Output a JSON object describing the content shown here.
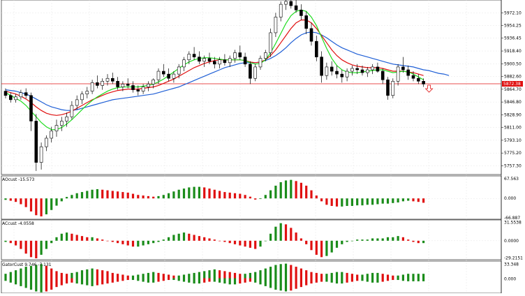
{
  "colors": {
    "bull": "#000000",
    "bear": "#000000",
    "green_hist": "#1a8c1a",
    "red_hist": "#e01010",
    "ma_blue": "#1f5fd6",
    "ma_red": "#e01010",
    "ma_green": "#22dd22",
    "price_line": "#e01010",
    "grid": "#e6e6e6",
    "arrow": "#e01010"
  },
  "main": {
    "y_ticks": [
      "5972.10",
      "5954.25",
      "5936.45",
      "5918.40",
      "5900.50",
      "5882.60",
      "5864.70",
      "5846.80",
      "5828.90",
      "5811.00",
      "5793.10",
      "5775.20",
      "5757.30"
    ],
    "current_price": "5872.38"
  },
  "ac_panel_1": {
    "label": "AOcust -15.573",
    "y_ticks": [
      "67.563",
      "0.000",
      "-66.887"
    ]
  },
  "ac_panel_2": {
    "label": "ACcust -4.0558",
    "y_ticks": [
      "31.5538",
      "0.0000",
      "-29.2151"
    ]
  },
  "gator_panel": {
    "label": "GatorCust 9.746 -7.131",
    "y_ticks": [
      "33.348",
      "0.000"
    ]
  },
  "chart_data": {
    "type": "candlestick",
    "ylim": [
      5745,
      5990
    ],
    "candles": [
      [
        5862,
        5866,
        5852,
        5856
      ],
      [
        5856,
        5860,
        5846,
        5850
      ],
      [
        5850,
        5858,
        5846,
        5854
      ],
      [
        5854,
        5864,
        5850,
        5860
      ],
      [
        5860,
        5866,
        5852,
        5856
      ],
      [
        5856,
        5860,
        5806,
        5820
      ],
      [
        5820,
        5830,
        5750,
        5762
      ],
      [
        5762,
        5790,
        5752,
        5784
      ],
      [
        5784,
        5800,
        5778,
        5796
      ],
      [
        5796,
        5812,
        5790,
        5806
      ],
      [
        5806,
        5822,
        5798,
        5814
      ],
      [
        5814,
        5826,
        5806,
        5820
      ],
      [
        5820,
        5832,
        5812,
        5826
      ],
      [
        5826,
        5848,
        5822,
        5842
      ],
      [
        5842,
        5856,
        5836,
        5850
      ],
      [
        5850,
        5862,
        5844,
        5858
      ],
      [
        5858,
        5868,
        5852,
        5862
      ],
      [
        5862,
        5878,
        5858,
        5874
      ],
      [
        5874,
        5884,
        5866,
        5870
      ],
      [
        5870,
        5880,
        5864,
        5876
      ],
      [
        5876,
        5886,
        5870,
        5880
      ],
      [
        5880,
        5888,
        5872,
        5876
      ],
      [
        5876,
        5882,
        5864,
        5868
      ],
      [
        5868,
        5876,
        5862,
        5872
      ],
      [
        5872,
        5880,
        5866,
        5870
      ],
      [
        5870,
        5876,
        5860,
        5864
      ],
      [
        5864,
        5870,
        5856,
        5862
      ],
      [
        5862,
        5872,
        5858,
        5868
      ],
      [
        5868,
        5876,
        5862,
        5872
      ],
      [
        5872,
        5880,
        5866,
        5878
      ],
      [
        5878,
        5894,
        5872,
        5890
      ],
      [
        5890,
        5900,
        5882,
        5886
      ],
      [
        5886,
        5894,
        5876,
        5880
      ],
      [
        5880,
        5890,
        5874,
        5886
      ],
      [
        5886,
        5900,
        5880,
        5896
      ],
      [
        5896,
        5910,
        5890,
        5906
      ],
      [
        5906,
        5918,
        5900,
        5914
      ],
      [
        5914,
        5924,
        5906,
        5910
      ],
      [
        5910,
        5918,
        5900,
        5904
      ],
      [
        5904,
        5912,
        5896,
        5908
      ],
      [
        5908,
        5916,
        5900,
        5904
      ],
      [
        5904,
        5910,
        5894,
        5900
      ],
      [
        5900,
        5910,
        5894,
        5906
      ],
      [
        5906,
        5914,
        5898,
        5902
      ],
      [
        5902,
        5912,
        5896,
        5908
      ],
      [
        5908,
        5920,
        5902,
        5916
      ],
      [
        5916,
        5926,
        5906,
        5910
      ],
      [
        5910,
        5916,
        5896,
        5900
      ],
      [
        5900,
        5904,
        5872,
        5880
      ],
      [
        5880,
        5900,
        5876,
        5896
      ],
      [
        5896,
        5912,
        5892,
        5908
      ],
      [
        5908,
        5920,
        5904,
        5916
      ],
      [
        5916,
        5950,
        5910,
        5944
      ],
      [
        5944,
        5972,
        5938,
        5966
      ],
      [
        5966,
        5988,
        5960,
        5984
      ],
      [
        5984,
        5992,
        5976,
        5988
      ],
      [
        5988,
        5994,
        5978,
        5982
      ],
      [
        5982,
        5990,
        5972,
        5976
      ],
      [
        5976,
        5984,
        5962,
        5968
      ],
      [
        5968,
        5974,
        5942,
        5950
      ],
      [
        5950,
        5958,
        5926,
        5932
      ],
      [
        5932,
        5940,
        5904,
        5910
      ],
      [
        5910,
        5918,
        5874,
        5884
      ],
      [
        5884,
        5902,
        5878,
        5896
      ],
      [
        5896,
        5904,
        5884,
        5890
      ],
      [
        5890,
        5898,
        5880,
        5886
      ],
      [
        5886,
        5892,
        5874,
        5882
      ],
      [
        5882,
        5894,
        5876,
        5890
      ],
      [
        5890,
        5898,
        5884,
        5894
      ],
      [
        5894,
        5900,
        5886,
        5892
      ],
      [
        5892,
        5898,
        5884,
        5888
      ],
      [
        5888,
        5896,
        5882,
        5892
      ],
      [
        5892,
        5900,
        5886,
        5896
      ],
      [
        5896,
        5902,
        5888,
        5890
      ],
      [
        5890,
        5894,
        5872,
        5878
      ],
      [
        5878,
        5882,
        5850,
        5856
      ],
      [
        5856,
        5880,
        5852,
        5876
      ],
      [
        5876,
        5900,
        5870,
        5896
      ],
      [
        5896,
        5910,
        5888,
        5892
      ],
      [
        5892,
        5898,
        5878,
        5884
      ],
      [
        5884,
        5890,
        5876,
        5880
      ],
      [
        5880,
        5886,
        5872,
        5876
      ],
      [
        5876,
        5880,
        5868,
        5872
      ]
    ],
    "ma_blue": [
      5864,
      5863,
      5862,
      5860,
      5858,
      5855,
      5851,
      5847,
      5843,
      5840,
      5838,
      5836,
      5835,
      5835,
      5836,
      5838,
      5840,
      5842,
      5844,
      5846,
      5848,
      5850,
      5851,
      5852,
      5853,
      5854,
      5855,
      5856,
      5857,
      5858,
      5860,
      5862,
      5864,
      5866,
      5868,
      5871,
      5874,
      5877,
      5880,
      5883,
      5886,
      5889,
      5892,
      5895,
      5897,
      5899,
      5901,
      5902,
      5902,
      5902,
      5903,
      5905,
      5908,
      5912,
      5917,
      5923,
      5930,
      5936,
      5941,
      5944,
      5945,
      5944,
      5941,
      5937,
      5932,
      5927,
      5923,
      5920,
      5917,
      5914,
      5912,
      5910,
      5908,
      5906,
      5904,
      5902,
      5900,
      5899,
      5898,
      5897,
      5896,
      5894,
      5892
    ],
    "ma_red": [
      5862,
      5860,
      5858,
      5855,
      5851,
      5846,
      5840,
      5835,
      5831,
      5829,
      5828,
      5829,
      5831,
      5834,
      5838,
      5842,
      5846,
      5850,
      5853,
      5856,
      5859,
      5861,
      5863,
      5864,
      5865,
      5865,
      5865,
      5866,
      5867,
      5868,
      5870,
      5873,
      5876,
      5879,
      5883,
      5887,
      5891,
      5895,
      5898,
      5901,
      5903,
      5905,
      5906,
      5906,
      5906,
      5906,
      5906,
      5905,
      5903,
      5902,
      5903,
      5906,
      5912,
      5920,
      5930,
      5940,
      5950,
      5958,
      5962,
      5962,
      5958,
      5950,
      5940,
      5930,
      5920,
      5912,
      5906,
      5902,
      5899,
      5897,
      5896,
      5895,
      5895,
      5895,
      5894,
      5892,
      5890,
      5890,
      5890,
      5889,
      5888,
      5886,
      5884
    ],
    "ma_green": [
      5860,
      5856,
      5852,
      5848,
      5842,
      5834,
      5826,
      5818,
      5812,
      5808,
      5808,
      5811,
      5816,
      5822,
      5829,
      5836,
      5843,
      5849,
      5854,
      5858,
      5862,
      5865,
      5867,
      5868,
      5868,
      5868,
      5868,
      5869,
      5870,
      5872,
      5875,
      5879,
      5884,
      5889,
      5894,
      5899,
      5903,
      5906,
      5908,
      5909,
      5909,
      5908,
      5907,
      5906,
      5906,
      5906,
      5906,
      5905,
      5902,
      5900,
      5901,
      5906,
      5916,
      5929,
      5943,
      5957,
      5968,
      5974,
      5976,
      5974,
      5966,
      5954,
      5938,
      5922,
      5908,
      5898,
      5892,
      5889,
      5888,
      5888,
      5889,
      5890,
      5891,
      5892,
      5892,
      5890,
      5888,
      5889,
      5890,
      5889,
      5886,
      5882,
      5878
    ],
    "ao": [
      -5,
      -8,
      -12,
      -20,
      -30,
      -45,
      -58,
      -62,
      -55,
      -40,
      -25,
      -10,
      5,
      12,
      18,
      22,
      26,
      30,
      32,
      30,
      28,
      26,
      24,
      22,
      20,
      16,
      12,
      10,
      8,
      6,
      8,
      12,
      18,
      24,
      30,
      34,
      38,
      40,
      40,
      38,
      34,
      30,
      26,
      22,
      20,
      18,
      16,
      12,
      6,
      -4,
      -2,
      12,
      28,
      44,
      56,
      62,
      64,
      60,
      54,
      44,
      28,
      10,
      -10,
      -22,
      -26,
      -28,
      -28,
      -26,
      -26,
      -24,
      -24,
      -22,
      -22,
      -20,
      -18,
      -18,
      -16,
      -14,
      -10,
      -8,
      -10,
      -12,
      -15
    ],
    "ac": [
      -2,
      -4,
      -8,
      -14,
      -22,
      -28,
      -30,
      -24,
      -14,
      -4,
      6,
      12,
      14,
      12,
      10,
      8,
      6,
      6,
      4,
      2,
      0,
      -2,
      -4,
      -6,
      -8,
      -10,
      -10,
      -8,
      -6,
      -4,
      -2,
      2,
      6,
      10,
      12,
      14,
      12,
      10,
      8,
      6,
      4,
      2,
      0,
      -2,
      -4,
      -6,
      -8,
      -10,
      -12,
      -14,
      -10,
      0,
      12,
      24,
      30,
      28,
      22,
      14,
      4,
      -6,
      -16,
      -24,
      -28,
      -26,
      -20,
      -12,
      -6,
      -2,
      0,
      2,
      2,
      2,
      4,
      4,
      4,
      6,
      6,
      8,
      6,
      2,
      -2,
      -4,
      -4
    ],
    "gator_up": [
      10,
      14,
      18,
      22,
      26,
      28,
      30,
      32,
      28,
      22,
      16,
      12,
      10,
      12,
      14,
      18,
      20,
      22,
      20,
      18,
      16,
      12,
      10,
      8,
      6,
      6,
      8,
      10,
      12,
      14,
      12,
      10,
      8,
      6,
      6,
      8,
      10,
      12,
      14,
      16,
      18,
      20,
      18,
      16,
      14,
      12,
      10,
      10,
      12,
      14,
      18,
      22,
      26,
      30,
      32,
      33,
      30,
      26,
      22,
      18,
      14,
      12,
      10,
      10,
      12,
      14,
      14,
      12,
      10,
      8,
      8,
      10,
      12,
      12,
      10,
      8,
      6,
      6,
      8,
      10,
      10,
      10,
      10
    ],
    "gator_down": [
      -6,
      -10,
      -14,
      -18,
      -22,
      -26,
      -30,
      -32,
      -30,
      -26,
      -20,
      -16,
      -12,
      -10,
      -12,
      -14,
      -16,
      -18,
      -16,
      -14,
      -12,
      -10,
      -8,
      -6,
      -4,
      -4,
      -6,
      -8,
      -10,
      -10,
      -8,
      -6,
      -4,
      -4,
      -6,
      -8,
      -10,
      -12,
      -12,
      -10,
      -8,
      -8,
      -10,
      -12,
      -14,
      -14,
      -12,
      -10,
      -8,
      -10,
      -14,
      -18,
      -22,
      -26,
      -28,
      -30,
      -28,
      -24,
      -20,
      -16,
      -12,
      -10,
      -8,
      -8,
      -10,
      -12,
      -12,
      -10,
      -8,
      -6,
      -6,
      -8,
      -10,
      -10,
      -8,
      -6,
      -4,
      -4,
      -6,
      -7,
      -7,
      -7,
      -7
    ]
  }
}
